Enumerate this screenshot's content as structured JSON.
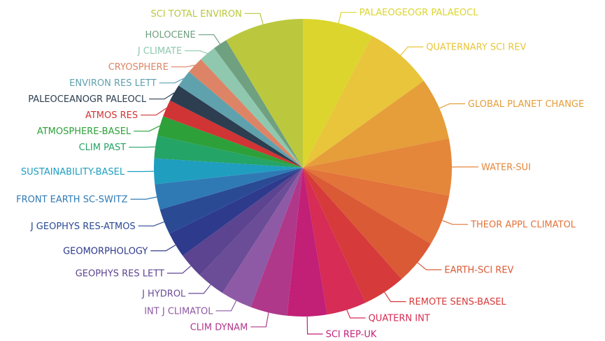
{
  "chart_data": {
    "type": "pie",
    "title": "",
    "start_angle_deg": 0,
    "direction": "clockwise",
    "legend": "none",
    "slices": [
      {
        "label": "PALAEOGEOGR PALAEOCL",
        "value": 25,
        "color": "#DCD52E"
      },
      {
        "label": "QUATERNARY SCI REV",
        "value": 24,
        "color": "#E8C53A"
      },
      {
        "label": "GLOBAL PLANET CHANGE",
        "value": 22,
        "color": "#E59E3A"
      },
      {
        "label": "WATER-SUI",
        "value": 20,
        "color": "#E5873A"
      },
      {
        "label": "THEOR APPL CLIMATOL",
        "value": 18,
        "color": "#E2733A"
      },
      {
        "label": "EARTH-SCI REV",
        "value": 16,
        "color": "#DB5A36"
      },
      {
        "label": "REMOTE SENS-BASEL",
        "value": 15,
        "color": "#D63A3A"
      },
      {
        "label": "QUATERN INT",
        "value": 14,
        "color": "#D62C55"
      },
      {
        "label": "SCI REP-UK",
        "value": 14,
        "color": "#C21F76"
      },
      {
        "label": "CLIM DYNAM",
        "value": 13,
        "color": "#B0388A"
      },
      {
        "label": "INT J CLIMATOL",
        "value": 11,
        "color": "#8E5AA5"
      },
      {
        "label": "J HYDROL",
        "value": 10,
        "color": "#6A4C97"
      },
      {
        "label": "GEOPHYS RES LETT",
        "value": 9,
        "color": "#5C4490"
      },
      {
        "label": "GEOMORPHOLOGY",
        "value": 9,
        "color": "#2E3A8C"
      },
      {
        "label": "J GEOPHYS RES-ATMOS",
        "value": 9,
        "color": "#2A4A94"
      },
      {
        "label": "FRONT EARTH SC-SWITZ",
        "value": 9,
        "color": "#2F7AB4"
      },
      {
        "label": "SUSTAINABILITY-BASEL",
        "value": 9,
        "color": "#1F9EC0"
      },
      {
        "label": "CLIM PAST",
        "value": 8,
        "color": "#24A466"
      },
      {
        "label": "ATMOSPHERE-BASEL",
        "value": 7,
        "color": "#2EA03A"
      },
      {
        "label": "ATMOS RES",
        "value": 6,
        "color": "#D13434"
      },
      {
        "label": "PALEOCEANOGR PALEOCL",
        "value": 6,
        "color": "#2C3E50"
      },
      {
        "label": "ENVIRON RES LETT",
        "value": 6,
        "color": "#5FA1AD"
      },
      {
        "label": "CRYOSPHERE",
        "value": 6,
        "color": "#DE8466"
      },
      {
        "label": "J CLIMATE",
        "value": 6,
        "color": "#8FC8AE"
      },
      {
        "label": "HOLOCENE",
        "value": 5,
        "color": "#6FA080"
      },
      {
        "label": "SCI TOTAL ENVIRON",
        "value": 28,
        "color": "#BBC83E"
      }
    ]
  }
}
